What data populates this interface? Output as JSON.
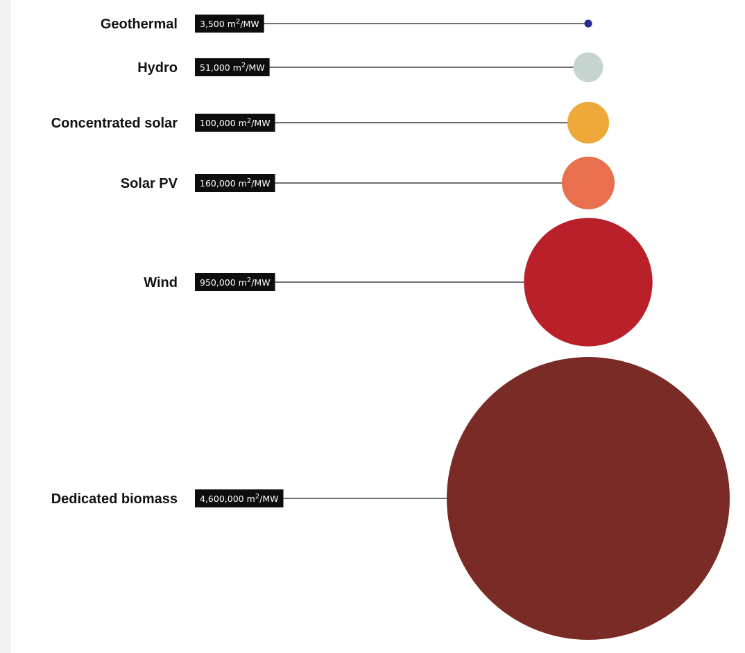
{
  "chart_data": {
    "type": "bubble",
    "title": "",
    "unit_prefix": "m",
    "unit_exponent": "2",
    "unit_suffix": "/MW",
    "categories": [
      "Geothermal",
      "Hydro",
      "Concentrated solar",
      "Solar PV",
      "Wind",
      "Dedicated biomass"
    ],
    "values": [
      3500,
      51000,
      100000,
      160000,
      950000,
      4600000
    ],
    "value_labels": [
      "3,500",
      "51,000",
      "100,000",
      "160,000",
      "950,000",
      "4,600,000"
    ],
    "colors": [
      "#22308f",
      "#c5d4cf",
      "#efa93b",
      "#e8704f",
      "#b9202a",
      "#7a2b26"
    ],
    "grid": false,
    "legend": "none"
  }
}
